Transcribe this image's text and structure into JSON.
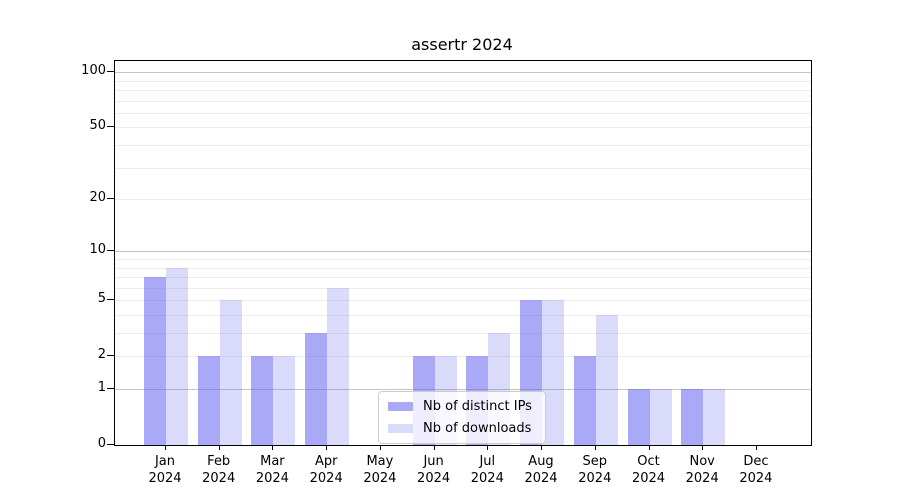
{
  "chart_data": {
    "type": "bar",
    "title": "assertr 2024",
    "xlabel": "",
    "ylabel": "",
    "yscale": "log1p",
    "ylim": [
      0,
      115
    ],
    "yticks": [
      0,
      1,
      2,
      5,
      10,
      20,
      50,
      100
    ],
    "gridlines": [
      1,
      2,
      3,
      4,
      5,
      6,
      7,
      8,
      9,
      10,
      20,
      30,
      40,
      50,
      60,
      70,
      80,
      90,
      100
    ],
    "decade_gridlines": [
      1,
      10,
      100
    ],
    "grid_minor_color": "#ededed",
    "grid_decade_color": "#c6c6c6",
    "axis_color": "#000000",
    "categories": [
      {
        "month": "Jan",
        "year": "2024"
      },
      {
        "month": "Feb",
        "year": "2024"
      },
      {
        "month": "Mar",
        "year": "2024"
      },
      {
        "month": "Apr",
        "year": "2024"
      },
      {
        "month": "May",
        "year": "2024"
      },
      {
        "month": "Jun",
        "year": "2024"
      },
      {
        "month": "Jul",
        "year": "2024"
      },
      {
        "month": "Aug",
        "year": "2024"
      },
      {
        "month": "Sep",
        "year": "2024"
      },
      {
        "month": "Oct",
        "year": "2024"
      },
      {
        "month": "Nov",
        "year": "2024"
      },
      {
        "month": "Dec",
        "year": "2024"
      }
    ],
    "series": [
      {
        "key": "distinct-ips",
        "name": "Nb of distinct IPs",
        "color": "rgba(102,102,240,0.56)",
        "color_hex_on_white": "#a9a9f7",
        "values": [
          7,
          2,
          2,
          3,
          0,
          2,
          2,
          5,
          2,
          1,
          1,
          0
        ]
      },
      {
        "key": "downloads",
        "name": "Nb of downloads",
        "color": "rgba(102,102,240,0.24)",
        "color_hex_on_white": "#dbdbf9",
        "values": [
          8,
          5,
          2,
          6,
          0,
          2,
          3,
          5,
          4,
          1,
          1,
          0
        ]
      }
    ],
    "legend_position": "bottom-center"
  }
}
